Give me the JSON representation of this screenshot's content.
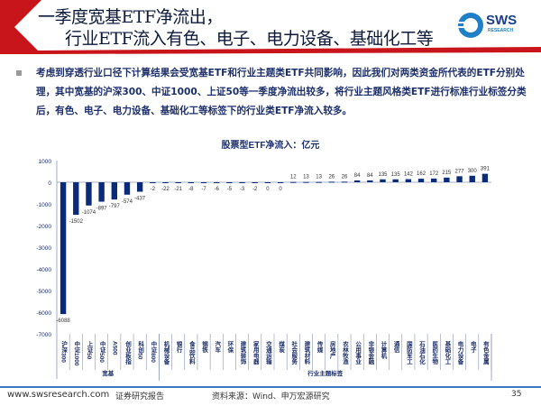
{
  "header": {
    "title_line1": "一季度宽基ETF净流出，",
    "title_line2": "行业ETF流入有色、电子、电力设备、基础化工等",
    "logo_text": "SWS",
    "logo_sub": "RESEARCH"
  },
  "body": {
    "paragraph": "考虑到穿透行业口径下计算结果会受宽基ETF和行业主题类ETF共同影响，因此我们对两类资金所代表的ETF分别处理，其中宽基的沪深300、中证1000、上证50等一季度净流出较多，将行业主题风格类ETF进行标准行业标签分类后，有色、电子、电力设备、基础化工等标签下的行业类ETF净流入较多。"
  },
  "chart_data": {
    "type": "bar",
    "title": "股票型ETF净流入：亿元",
    "categories": [
      "沪深300",
      "中证1000",
      "上证50",
      "中证500",
      "A500",
      "创业板指",
      "科创50",
      "中证800",
      "机械设备",
      "银行",
      "食品饮料",
      "钢铁",
      "汽车",
      "环保",
      "建筑装饰",
      "家用电器",
      "交通运输",
      "煤炭",
      "社会服务",
      "建筑材料",
      "传媒",
      "房地产",
      "农林牧渔",
      "公用事业",
      "非银金融",
      "计算机",
      "通信",
      "国防军工",
      "石油石化",
      "医药生物",
      "基础化工",
      "电力设备",
      "电子",
      "有色金属"
    ],
    "values": [
      -6088,
      -1502,
      -1074,
      -897,
      -797,
      -574,
      -437,
      -2,
      -22,
      -21,
      -8,
      -7,
      -6,
      -5,
      -3,
      -2,
      0,
      0,
      12,
      13,
      13,
      26,
      26,
      84,
      84,
      135,
      135,
      142,
      162,
      172,
      215,
      277,
      300,
      391
    ],
    "groups": [
      {
        "name": "宽基",
        "count": 8
      },
      {
        "name": "行业主题标签",
        "count": 26
      }
    ],
    "ylim": [
      -7000,
      1000
    ],
    "yticks": [
      1000,
      0,
      -1000,
      -2000,
      -3000,
      -4000,
      -5000,
      -6000,
      -7000
    ],
    "bar_color": "#0a2a7a"
  },
  "footer": {
    "website": "www.swsresearch.com",
    "report_type": "证券研究报告",
    "source": "资料来源：Wind、申万宏源研究",
    "page": "35"
  }
}
